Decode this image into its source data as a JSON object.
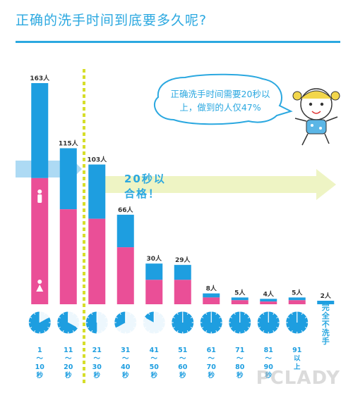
{
  "title": "正确的洗手时间到底要多久呢?",
  "bubble_text": "正确洗手时间需要20秒以上，做到的人仅47%",
  "pass_text_line1": "20秒以",
  "pass_text_line2": "合格！",
  "watermark": "PCLADY",
  "colors": {
    "blue": "#1e9ee0",
    "pink": "#ea4f97",
    "light_blue_arrow": "#a9d8f3",
    "light_yellow_arrow": "#eef4c4",
    "dashed_line": "#d6de2a",
    "bubble_border": "#2ba8e0"
  },
  "chart_data": {
    "type": "bar",
    "stacked": true,
    "categories": [
      "1～10秒",
      "11～20秒",
      "21～30秒",
      "31～40秒",
      "41～50秒",
      "51～60秒",
      "61～70秒",
      "71～80秒",
      "81～90秒",
      "91以上",
      "完全不洗手"
    ],
    "category_lines": [
      [
        "1",
        "～",
        "10",
        "秒"
      ],
      [
        "11",
        "～",
        "20",
        "秒"
      ],
      [
        "21",
        "～",
        "30",
        "秒"
      ],
      [
        "31",
        "～",
        "40",
        "秒"
      ],
      [
        "41",
        "～",
        "50",
        "秒"
      ],
      [
        "51",
        "～",
        "60",
        "秒"
      ],
      [
        "61",
        "～",
        "70",
        "秒"
      ],
      [
        "71",
        "～",
        "80",
        "秒"
      ],
      [
        "81",
        "～",
        "90",
        "秒"
      ],
      [
        "91",
        "以",
        "上"
      ],
      [
        "完",
        "全",
        "不",
        "洗",
        "手"
      ]
    ],
    "totals": [
      163,
      115,
      103,
      66,
      30,
      29,
      8,
      5,
      4,
      5,
      2
    ],
    "data_labels": [
      "163人",
      "115人",
      "103人",
      "66人",
      "30人",
      "29人",
      "8人",
      "5人",
      "4人",
      "5人",
      "2人"
    ],
    "series": [
      {
        "name": "male",
        "values": [
          70,
          45,
          40,
          24,
          12,
          11,
          3,
          2,
          2,
          2,
          2
        ]
      },
      {
        "name": "female",
        "values": [
          93,
          70,
          63,
          42,
          18,
          18,
          5,
          3,
          2,
          3,
          0
        ]
      }
    ],
    "clock_fractions": [
      0.17,
      0.33,
      0.5,
      0.67,
      0.83,
      1.0,
      1.17,
      1.33,
      1.5,
      1.67,
      null
    ],
    "threshold_after_category": 1,
    "ylim": [
      0,
      163
    ],
    "grid": false,
    "legend": "icons-on-first-bar"
  }
}
